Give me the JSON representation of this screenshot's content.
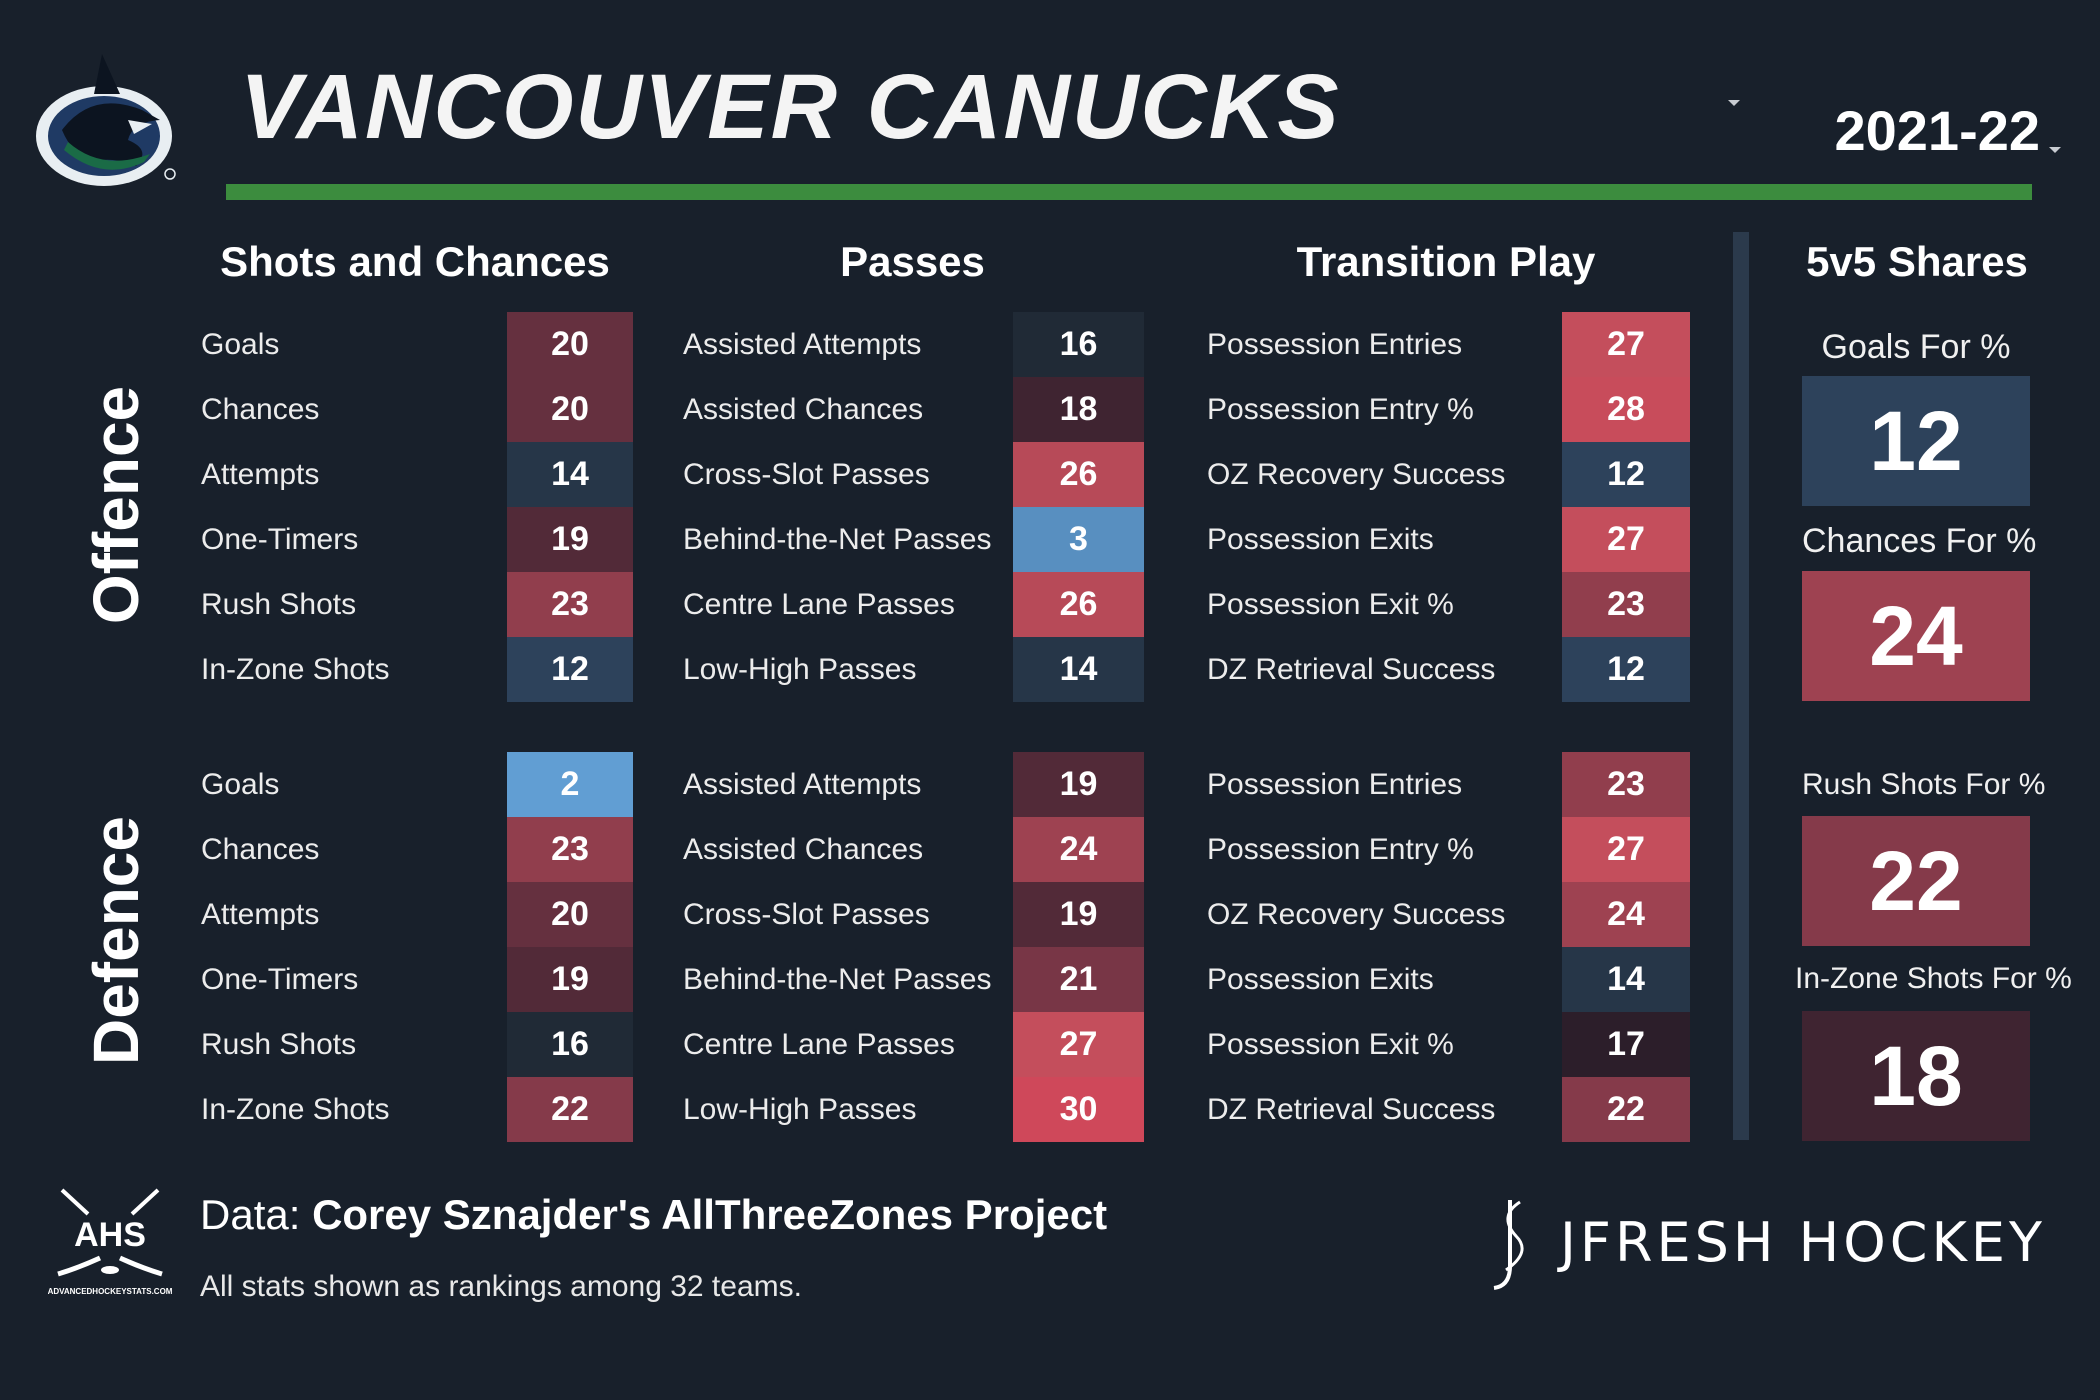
{
  "header": {
    "team_name": "VANCOUVER CANUCKS",
    "season": "2021-22"
  },
  "sections": {
    "shots": "Shots and Chances",
    "passes": "Passes",
    "transition": "Transition Play",
    "shares": "5v5 Shares"
  },
  "side_labels": {
    "offence": "Offence",
    "defence": "Defence"
  },
  "colors": {
    "background": "#18202b",
    "accent_green": "#3c8c3e",
    "rank_scale": "rank 1 = red (#d7465a), mid = dark, rank 32 = blue (#6aaee6)"
  },
  "offence": {
    "shots": [
      {
        "label": "Goals",
        "value": 20
      },
      {
        "label": "Chances",
        "value": 20
      },
      {
        "label": "Attempts",
        "value": 14
      },
      {
        "label": "One-Timers",
        "value": 19
      },
      {
        "label": "Rush Shots",
        "value": 23
      },
      {
        "label": "In-Zone Shots",
        "value": 12
      }
    ],
    "passes": [
      {
        "label": "Assisted Attempts",
        "value": 16
      },
      {
        "label": "Assisted Chances",
        "value": 18
      },
      {
        "label": "Cross-Slot Passes",
        "value": 26
      },
      {
        "label": "Behind-the-Net Passes",
        "value": 3
      },
      {
        "label": "Centre Lane Passes",
        "value": 26
      },
      {
        "label": "Low-High Passes",
        "value": 14
      }
    ],
    "transition": [
      {
        "label": "Possession Entries",
        "value": 27
      },
      {
        "label": "Possession Entry %",
        "value": 28
      },
      {
        "label": "OZ Recovery Success",
        "value": 12
      },
      {
        "label": "Possession Exits",
        "value": 27
      },
      {
        "label": "Possession Exit %",
        "value": 23
      },
      {
        "label": "DZ Retrieval Success",
        "value": 12
      }
    ]
  },
  "defence": {
    "shots": [
      {
        "label": "Goals",
        "value": 2
      },
      {
        "label": "Chances",
        "value": 23
      },
      {
        "label": "Attempts",
        "value": 20
      },
      {
        "label": "One-Timers",
        "value": 19
      },
      {
        "label": "Rush Shots",
        "value": 16
      },
      {
        "label": "In-Zone Shots",
        "value": 22
      }
    ],
    "passes": [
      {
        "label": "Assisted Attempts",
        "value": 19
      },
      {
        "label": "Assisted Chances",
        "value": 24
      },
      {
        "label": "Cross-Slot Passes",
        "value": 19
      },
      {
        "label": "Behind-the-Net Passes",
        "value": 21
      },
      {
        "label": "Centre Lane Passes",
        "value": 27
      },
      {
        "label": "Low-High Passes",
        "value": 30
      }
    ],
    "transition": [
      {
        "label": "Possession Entries",
        "value": 23
      },
      {
        "label": "Possession Entry %",
        "value": 27
      },
      {
        "label": "OZ Recovery Success",
        "value": 24
      },
      {
        "label": "Possession Exits",
        "value": 14
      },
      {
        "label": "Possession Exit %",
        "value": 17
      },
      {
        "label": "DZ Retrieval Success",
        "value": 22
      }
    ]
  },
  "shares": [
    {
      "label": "Goals For %",
      "value": 12
    },
    {
      "label": "Chances For %",
      "value": 24
    },
    {
      "label": "Rush Shots For %",
      "value": 22
    },
    {
      "label": "In-Zone Shots For %",
      "value": 18
    }
  ],
  "footer": {
    "data_prefix": "Data: ",
    "data_source": "Corey Sznajder's AllThreeZones Project",
    "note": "All stats shown as rankings among 32 teams.",
    "ahs_logo_text": "AHS",
    "ahs_url": "ADVANCEDHOCKEYSTATS.COM",
    "brand": "JFRESH HOCKEY"
  },
  "icons": {
    "team_logo": "orca-logo-icon",
    "dropdown": "caret-down-icon",
    "ahs": "ahs-logo-icon",
    "jfresh": "jfresh-logo-icon"
  }
}
